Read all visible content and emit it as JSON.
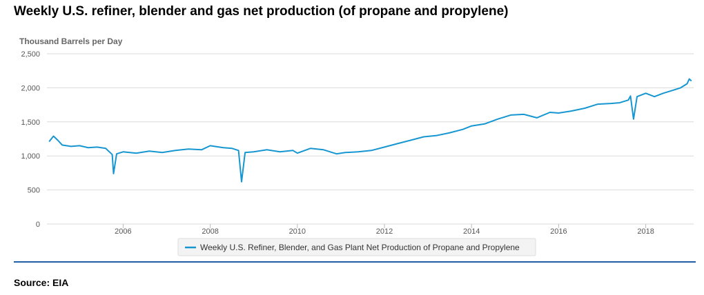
{
  "page": {
    "title": "Weekly U.S. refiner, blender and gas net production (of propane and propylene)",
    "source": "Source: EIA"
  },
  "colors": {
    "series": "#1596d1",
    "grid": "#d9d9d9",
    "rule": "#1f5fa6"
  },
  "chart_data": {
    "type": "line",
    "ylabel": "Thousand Barrels per Day",
    "ylim": [
      0,
      2500
    ],
    "yticks": [
      0,
      500,
      1000,
      1500,
      2000,
      2500
    ],
    "ytick_labels": [
      "0",
      "500",
      "1,000",
      "1,500",
      "2,000",
      "2,500"
    ],
    "xlim": [
      2004.25,
      2019.1
    ],
    "xticks": [
      2006,
      2008,
      2010,
      2012,
      2014,
      2016,
      2018
    ],
    "xtick_labels": [
      "2006",
      "2008",
      "2010",
      "2012",
      "2014",
      "2016",
      "2018"
    ],
    "grid": true,
    "legend_position": "bottom",
    "series": [
      {
        "name": "Weekly U.S. Refiner, Blender, and Gas Plant Net Production of Propane and Propylene",
        "x": [
          2004.3,
          2004.4,
          2004.5,
          2004.6,
          2004.8,
          2005.0,
          2005.2,
          2005.4,
          2005.6,
          2005.75,
          2005.78,
          2005.85,
          2006.0,
          2006.3,
          2006.6,
          2006.9,
          2007.2,
          2007.5,
          2007.8,
          2008.0,
          2008.3,
          2008.5,
          2008.65,
          2008.72,
          2008.8,
          2009.0,
          2009.3,
          2009.6,
          2009.9,
          2010.0,
          2010.3,
          2010.6,
          2010.9,
          2011.1,
          2011.4,
          2011.7,
          2012.0,
          2012.3,
          2012.6,
          2012.9,
          2013.2,
          2013.5,
          2013.8,
          2014.0,
          2014.3,
          2014.6,
          2014.9,
          2015.2,
          2015.5,
          2015.8,
          2016.0,
          2016.3,
          2016.6,
          2016.9,
          2017.2,
          2017.4,
          2017.6,
          2017.65,
          2017.72,
          2017.8,
          2018.0,
          2018.2,
          2018.4,
          2018.6,
          2018.8,
          2018.95,
          2019.0,
          2019.05
        ],
        "values": [
          1210,
          1290,
          1230,
          1160,
          1140,
          1150,
          1120,
          1130,
          1110,
          1020,
          740,
          1030,
          1060,
          1040,
          1070,
          1050,
          1080,
          1100,
          1090,
          1150,
          1120,
          1110,
          1080,
          620,
          1050,
          1060,
          1090,
          1060,
          1080,
          1040,
          1110,
          1090,
          1030,
          1050,
          1060,
          1080,
          1130,
          1180,
          1230,
          1280,
          1300,
          1340,
          1390,
          1440,
          1470,
          1540,
          1600,
          1610,
          1560,
          1640,
          1630,
          1660,
          1700,
          1760,
          1770,
          1780,
          1820,
          1880,
          1540,
          1870,
          1920,
          1870,
          1920,
          1960,
          2000,
          2060,
          2130,
          2100
        ]
      }
    ]
  }
}
